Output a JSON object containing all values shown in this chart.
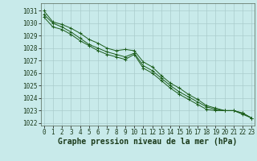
{
  "background_color": "#c8eaea",
  "grid_color": "#aacccc",
  "line_color": "#1a5c1a",
  "marker_color": "#1a5c1a",
  "xlabel": "Graphe pression niveau de la mer (hPa)",
  "xlabel_fontsize": 7,
  "tick_fontsize": 5.5,
  "xlim": [
    -0.3,
    23.3
  ],
  "ylim": [
    1021.8,
    1031.6
  ],
  "yticks": [
    1022,
    1023,
    1024,
    1025,
    1026,
    1027,
    1028,
    1029,
    1030,
    1031
  ],
  "xticks": [
    0,
    1,
    2,
    3,
    4,
    5,
    6,
    7,
    8,
    9,
    10,
    11,
    12,
    13,
    14,
    15,
    16,
    17,
    18,
    19,
    20,
    21,
    22,
    23
  ],
  "series": [
    [
      1031.0,
      1030.1,
      1029.9,
      1029.6,
      1029.2,
      1028.7,
      1028.4,
      1028.0,
      1027.8,
      1027.9,
      1027.8,
      1026.9,
      1026.5,
      1025.8,
      1025.2,
      1024.8,
      1024.3,
      1023.9,
      1023.4,
      1023.2,
      1023.0,
      1023.0,
      1022.7,
      1022.4
    ],
    [
      1030.7,
      1030.0,
      1029.7,
      1029.3,
      1028.8,
      1028.3,
      1028.0,
      1027.7,
      1027.5,
      1027.3,
      1027.6,
      1026.6,
      1026.2,
      1025.6,
      1025.0,
      1024.5,
      1024.1,
      1023.7,
      1023.3,
      1023.1,
      1023.0,
      1023.0,
      1022.8,
      1022.4
    ],
    [
      1030.5,
      1029.7,
      1029.5,
      1029.1,
      1028.6,
      1028.2,
      1027.8,
      1027.5,
      1027.3,
      1027.1,
      1027.5,
      1026.4,
      1026.0,
      1025.4,
      1024.8,
      1024.3,
      1023.9,
      1023.5,
      1023.1,
      1023.0,
      1023.0,
      1023.0,
      1022.8,
      1022.4
    ]
  ]
}
